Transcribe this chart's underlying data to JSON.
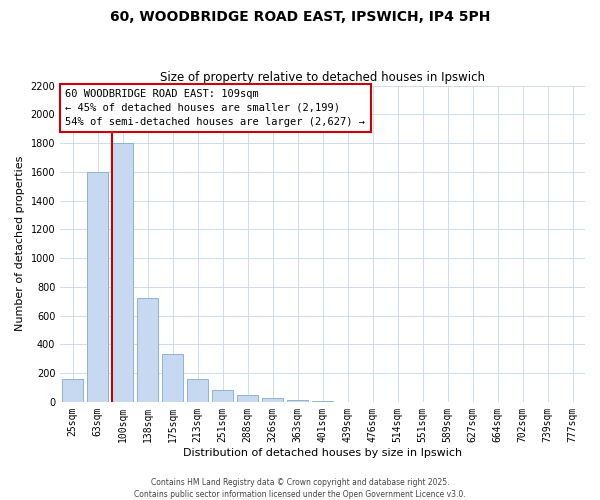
{
  "title": "60, WOODBRIDGE ROAD EAST, IPSWICH, IP4 5PH",
  "subtitle": "Size of property relative to detached houses in Ipswich",
  "xlabel": "Distribution of detached houses by size in Ipswich",
  "ylabel": "Number of detached properties",
  "bar_labels": [
    "25sqm",
    "63sqm",
    "100sqm",
    "138sqm",
    "175sqm",
    "213sqm",
    "251sqm",
    "288sqm",
    "326sqm",
    "363sqm",
    "401sqm",
    "439sqm",
    "476sqm",
    "514sqm",
    "551sqm",
    "589sqm",
    "627sqm",
    "664sqm",
    "702sqm",
    "739sqm",
    "777sqm"
  ],
  "bar_values": [
    160,
    1600,
    1800,
    720,
    330,
    160,
    85,
    45,
    25,
    12,
    5,
    0,
    0,
    0,
    0,
    0,
    0,
    0,
    0,
    0,
    0
  ],
  "bar_color": "#c6d9f0",
  "bar_edge_color": "#8ab4d8",
  "vline_color": "#cc0000",
  "vline_pos": 1.58,
  "annotation_lines": [
    "60 WOODBRIDGE ROAD EAST: 109sqm",
    "← 45% of detached houses are smaller (2,199)",
    "54% of semi-detached houses are larger (2,627) →"
  ],
  "annotation_box_edge_color": "#cc0000",
  "annotation_box_fill": "#ffffff",
  "ylim": [
    0,
    2200
  ],
  "yticks": [
    0,
    200,
    400,
    600,
    800,
    1000,
    1200,
    1400,
    1600,
    1800,
    2000,
    2200
  ],
  "footnote1": "Contains HM Land Registry data © Crown copyright and database right 2025.",
  "footnote2": "Contains public sector information licensed under the Open Government Licence v3.0.",
  "bg_color": "#ffffff",
  "grid_color": "#c8d8e8",
  "title_fontsize": 10,
  "subtitle_fontsize": 8.5,
  "axis_label_fontsize": 8,
  "tick_fontsize": 7,
  "annotation_fontsize": 7.5,
  "footnote_fontsize": 5.5
}
